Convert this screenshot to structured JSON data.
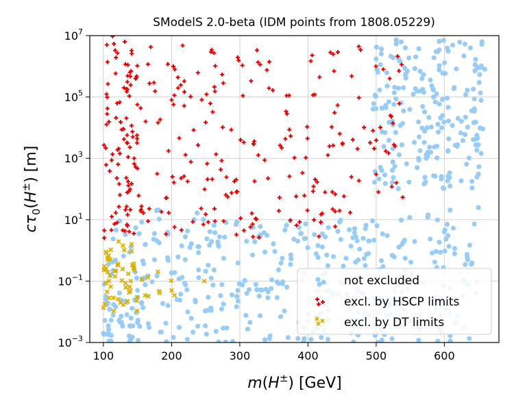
{
  "chart_data": {
    "type": "scatter",
    "title": "SModelS 2.0-beta (IDM points from 1808.05229)",
    "xlabel": "m(H^{±}) [GeV]",
    "ylabel": "cτ_0(H^{±}) [m]",
    "xlabel_parts": {
      "m": "m",
      "open": "(",
      "H": "H",
      "sup": "±",
      "close": ") [GeV]"
    },
    "ylabel_parts": {
      "c": "cτ",
      "sub": "0",
      "open": "(",
      "H": "H",
      "sup": "±",
      "close": ") [m]"
    },
    "xlim": [
      80,
      680
    ],
    "ylim": [
      0.001,
      10000000
    ],
    "yscale": "log",
    "grid": true,
    "legend_position": "lower-right",
    "x_ticks": [
      100,
      200,
      300,
      400,
      500,
      600
    ],
    "x_tick_labels": [
      "100",
      "200",
      "300",
      "400",
      "500",
      "600"
    ],
    "y_ticks": [
      0.001,
      0.1,
      10,
      1000,
      100000,
      10000000
    ],
    "y_tick_labels": [
      {
        "base": "10",
        "exp": "−3"
      },
      {
        "base": "10",
        "exp": "−1"
      },
      {
        "base": "10",
        "exp": "1"
      },
      {
        "base": "10",
        "exp": "3"
      },
      {
        "base": "10",
        "exp": "5"
      },
      {
        "base": "10",
        "exp": "7"
      }
    ],
    "series": [
      {
        "name": "not excluded",
        "marker": "circle",
        "color": "#99ccf5",
        "regions": [
          {
            "x": [
              100,
              650
            ],
            "log10y": [
              -3,
              1
            ],
            "density": 1.0
          },
          {
            "x": [
              495,
              660
            ],
            "log10y": [
              2,
              7
            ],
            "density": 1.4
          },
          {
            "x": [
              160,
              660
            ],
            "log10y": [
              1,
              1.4
            ],
            "density": 0.3
          },
          {
            "x": [
              100,
              160
            ],
            "log10y": [
              -3,
              -1.5
            ],
            "density": 1.5
          }
        ],
        "sample_points": [
          [
            100,
            0.002
          ],
          [
            150,
            0.05
          ],
          [
            220,
            0.5
          ],
          [
            310,
            2.0
          ],
          [
            420,
            0.02
          ],
          [
            510,
            0.3
          ],
          [
            600,
            4.0
          ],
          [
            650,
            25
          ],
          [
            540,
            200000
          ],
          [
            590,
            3000000
          ],
          [
            620,
            20000
          ],
          [
            560,
            500
          ]
        ]
      },
      {
        "name": "excl. by HSCP limits",
        "marker": "plus",
        "color": "#e60000",
        "regions": [
          {
            "x": [
              100,
              150
            ],
            "log10y": [
              1.8,
              7
            ],
            "density": 1.6
          },
          {
            "x": [
              150,
              545
            ],
            "log10y": [
              1.7,
              6.7
            ],
            "density": 0.45
          },
          {
            "x": [
              100,
              160
            ],
            "log10y": [
              0.3,
              1.5
            ],
            "density": 1.6
          },
          {
            "x": [
              160,
              470
            ],
            "log10y": [
              0.4,
              1.5
            ],
            "density": 0.6
          }
        ],
        "sample_points": [
          [
            105,
            5000000
          ],
          [
            130,
            200000
          ],
          [
            145,
            1000
          ],
          [
            200,
            80000
          ],
          [
            320,
            3000
          ],
          [
            410,
            120000
          ],
          [
            500,
            300
          ],
          [
            120,
            8
          ],
          [
            250,
            15
          ],
          [
            440,
            6
          ]
        ]
      },
      {
        "name": "excl. by DT limits",
        "marker": "x",
        "color": "#dbb000",
        "regions": [
          {
            "x": [
              100,
              150
            ],
            "log10y": [
              -2.2,
              0.3
            ],
            "density": 2.2
          },
          {
            "x": [
              150,
              210
            ],
            "log10y": [
              -1.6,
              -0.4
            ],
            "density": 0.6
          }
        ],
        "sample_points": [
          [
            110,
            0.5
          ],
          [
            125,
            0.02
          ],
          [
            140,
            0.1
          ],
          [
            180,
            0.2
          ],
          [
            200,
            0.05
          ],
          [
            248,
            0.1
          ]
        ]
      }
    ]
  }
}
